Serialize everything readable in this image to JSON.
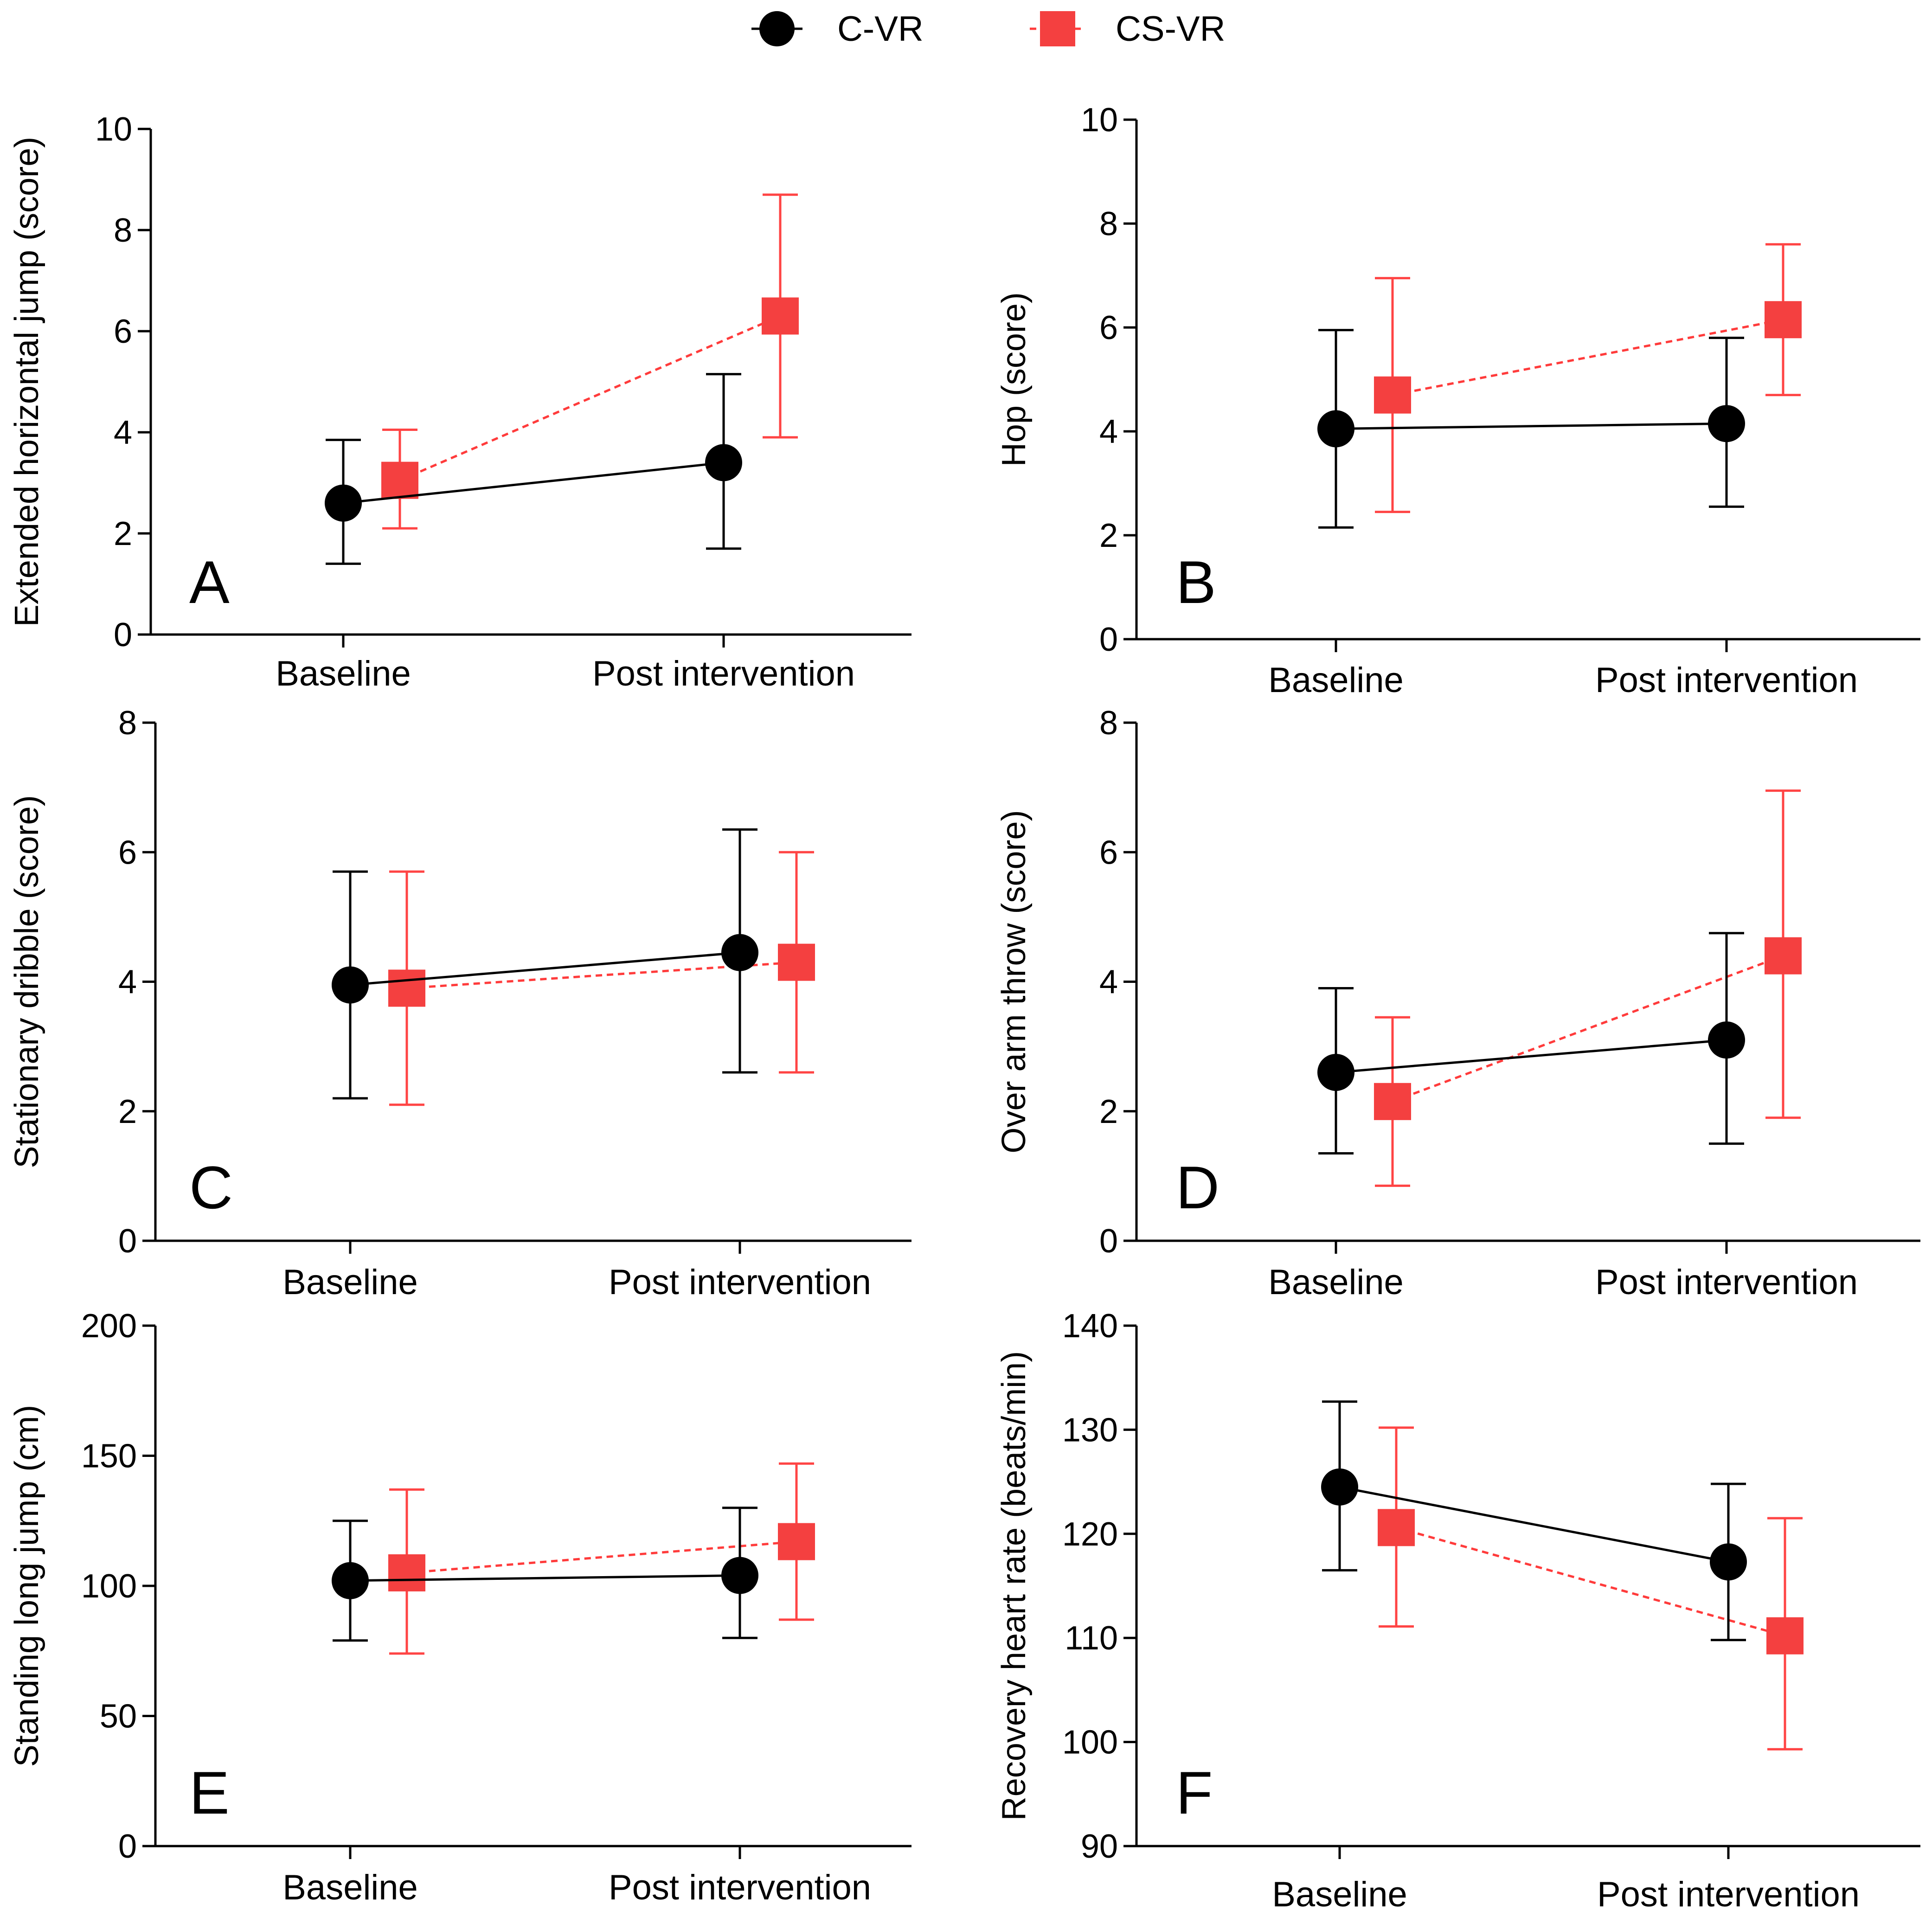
{
  "legend": {
    "items": [
      {
        "name": "C-VR",
        "color": "#000000",
        "marker": "circle",
        "line": "solid"
      },
      {
        "name": "CS-VR",
        "color": "#f44040",
        "marker": "square",
        "line": "dashed"
      }
    ]
  },
  "chart_data": [
    {
      "type": "line",
      "panel": "A",
      "title": "",
      "xlabel": "",
      "ylabel": "Extended horizontal jump (score)",
      "categories": [
        "Baseline",
        "Post intervention"
      ],
      "ylim": [
        0,
        10
      ],
      "yticks": [
        0,
        2,
        4,
        6,
        8,
        10
      ],
      "series": [
        {
          "name": "C-VR",
          "values": [
            2.6,
            3.4
          ],
          "err_low": [
            1.4,
            1.7
          ],
          "err_high": [
            3.85,
            5.15
          ]
        },
        {
          "name": "CS-VR",
          "values": [
            3.05,
            6.3
          ],
          "err_low": [
            2.1,
            3.9
          ],
          "err_high": [
            4.05,
            8.7
          ]
        }
      ]
    },
    {
      "type": "line",
      "panel": "B",
      "title": "",
      "xlabel": "",
      "ylabel": "Hop (score)",
      "categories": [
        "Baseline",
        "Post intervention"
      ],
      "ylim": [
        0,
        10
      ],
      "yticks": [
        0,
        2,
        4,
        6,
        8,
        10
      ],
      "series": [
        {
          "name": "C-VR",
          "values": [
            4.05,
            4.15
          ],
          "err_low": [
            2.15,
            2.55
          ],
          "err_high": [
            5.95,
            5.8
          ]
        },
        {
          "name": "CS-VR",
          "values": [
            4.7,
            6.15
          ],
          "err_low": [
            2.45,
            4.7
          ],
          "err_high": [
            6.95,
            7.6
          ]
        }
      ]
    },
    {
      "type": "line",
      "panel": "C",
      "title": "",
      "xlabel": "",
      "ylabel": "Stationary dribble (score)",
      "categories": [
        "Baseline",
        "Post intervention"
      ],
      "ylim": [
        0,
        8
      ],
      "yticks": [
        0,
        2,
        4,
        6,
        8
      ],
      "series": [
        {
          "name": "C-VR",
          "values": [
            3.95,
            4.45
          ],
          "err_low": [
            2.2,
            2.6
          ],
          "err_high": [
            5.7,
            6.35
          ]
        },
        {
          "name": "CS-VR",
          "values": [
            3.9,
            4.3
          ],
          "err_low": [
            2.1,
            2.6
          ],
          "err_high": [
            5.7,
            6.0
          ]
        }
      ]
    },
    {
      "type": "line",
      "panel": "D",
      "title": "",
      "xlabel": "",
      "ylabel": "Over arm throw (score)",
      "categories": [
        "Baseline",
        "Post intervention"
      ],
      "ylim": [
        0,
        8
      ],
      "yticks": [
        0,
        2,
        4,
        6,
        8
      ],
      "series": [
        {
          "name": "C-VR",
          "values": [
            2.6,
            3.1
          ],
          "err_low": [
            1.35,
            1.5
          ],
          "err_high": [
            3.9,
            4.75
          ]
        },
        {
          "name": "CS-VR",
          "values": [
            2.15,
            4.4
          ],
          "err_low": [
            0.85,
            1.9
          ],
          "err_high": [
            3.45,
            6.95
          ]
        }
      ]
    },
    {
      "type": "line",
      "panel": "E",
      "title": "",
      "xlabel": "",
      "ylabel": "Standing long jump (cm)",
      "categories": [
        "Baseline",
        "Post intervention"
      ],
      "ylim": [
        0,
        200
      ],
      "yticks": [
        0,
        50,
        100,
        150,
        200
      ],
      "series": [
        {
          "name": "C-VR",
          "values": [
            102,
            104
          ],
          "err_low": [
            79,
            80
          ],
          "err_high": [
            125,
            130
          ]
        },
        {
          "name": "CS-VR",
          "values": [
            105,
            117
          ],
          "err_low": [
            74,
            87
          ],
          "err_high": [
            137,
            147
          ]
        }
      ]
    },
    {
      "type": "line",
      "panel": "F",
      "title": "",
      "xlabel": "",
      "ylabel": "Recovery heart rate (beats/min)",
      "categories": [
        "Baseline",
        "Post intervention"
      ],
      "ylim": [
        90,
        140
      ],
      "yticks": [
        90,
        100,
        110,
        120,
        130,
        140
      ],
      "series": [
        {
          "name": "C-VR",
          "values": [
            124.5,
            117.3
          ],
          "err_low": [
            116.5,
            109.8
          ],
          "err_high": [
            132.7,
            124.8
          ]
        },
        {
          "name": "CS-VR",
          "values": [
            120.6,
            110.2
          ],
          "err_low": [
            111.1,
            99.3
          ],
          "err_high": [
            130.2,
            121.5
          ]
        }
      ]
    }
  ]
}
